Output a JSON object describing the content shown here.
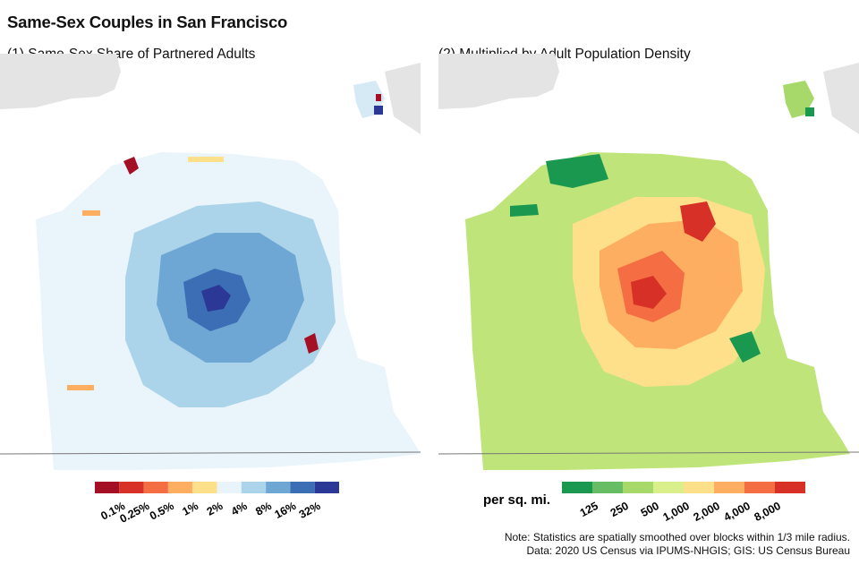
{
  "title": "Same-Sex Couples in San Francisco",
  "panels": [
    {
      "subtitle": "(1) Same-Sex Share of Partnered Adults",
      "legend": {
        "unit": "",
        "labels": [
          "0.1%",
          "0.25%",
          "0.5%",
          "1%",
          "2%",
          "4%",
          "8%",
          "16%",
          "32%"
        ],
        "colors": [
          "#a50f26",
          "#d73128",
          "#f46d43",
          "#fdae61",
          "#fee08b",
          "#e8f3fa",
          "#abd4ea",
          "#6fa7d4",
          "#3c6eb6",
          "#2b3896"
        ]
      }
    },
    {
      "subtitle": "(2) Multiplied by Adult Population Density",
      "legend": {
        "unit": "per sq. mi.",
        "labels": [
          "125",
          "250",
          "500",
          "1,000",
          "2,000",
          "4,000",
          "8,000"
        ],
        "colors": [
          "#1a9850",
          "#66bd63",
          "#a6d96a",
          "#d9ef8b",
          "#fee08b",
          "#fdae61",
          "#f46d43",
          "#d73027"
        ]
      }
    }
  ],
  "note_lines": [
    "Note: Statistics are spatially smoothed over blocks within 1/3 mile radius.",
    "Data: 2020 US Census via IPUMS-NHGIS; GIS: US Census Bureau"
  ]
}
